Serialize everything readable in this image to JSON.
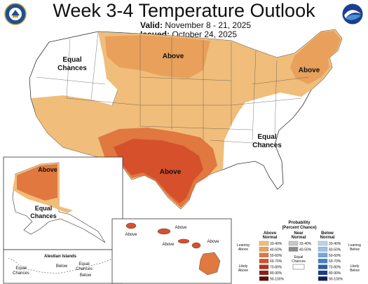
{
  "header": {
    "title": "Week 3-4 Temperature Outlook",
    "valid_label": "Valid:",
    "valid_value": "November 8 - 21, 2025",
    "issued_label": "Issued:",
    "issued_value": "October 24, 2025",
    "left_logo": "doc-seal-icon",
    "right_logo": "noaa-logo-icon"
  },
  "map": {
    "conus_labels": {
      "equal_west": [
        "Equal",
        "Chances"
      ],
      "above_north": "Above",
      "above_northeast": "Above",
      "above_south": "Above",
      "equal_southeast": [
        "Equal",
        "Chances"
      ]
    },
    "alaska_labels": {
      "above": "Above",
      "equal": [
        "Equal",
        "Chances"
      ]
    },
    "hawaii_labels": [
      "Above",
      "Above",
      "Above",
      "Above"
    ],
    "aleutian_labels": {
      "title": "Aleutian Islands",
      "equal": [
        "Equal",
        "Chances"
      ],
      "equal2": [
        "Equal",
        "Chances"
      ],
      "below": "Below",
      "below2": "Below"
    }
  },
  "legend": {
    "title": "Probability",
    "subtitle": "(Percent Chance)",
    "above_header": [
      "Above",
      "Normal"
    ],
    "near_header": [
      "Near",
      "Normal"
    ],
    "below_header": [
      "Below",
      "Normal"
    ],
    "leaning_above": [
      "Leaning",
      "Above"
    ],
    "likely_above": [
      "Likely",
      "Above"
    ],
    "leaning_below": [
      "Leaning",
      "Below"
    ],
    "likely_below": [
      "Likely",
      "Below"
    ],
    "equal_chances": [
      "Equal",
      "Chances"
    ],
    "above_bins": [
      {
        "range": "33-40%",
        "color": "#f0bd7a"
      },
      {
        "range": "40-50%",
        "color": "#e8a05a"
      },
      {
        "range": "50-60%",
        "color": "#e07840"
      },
      {
        "range": "60-70%",
        "color": "#d6502c"
      },
      {
        "range": "70-80%",
        "color": "#b8321c"
      },
      {
        "range": "80-90%",
        "color": "#8e1e12"
      },
      {
        "range": "90-100%",
        "color": "#5e0f08"
      }
    ],
    "near_bins": [
      {
        "range": "33-40%",
        "color": "#c8c8c8"
      },
      {
        "range": "40-50%",
        "color": "#8c8c8c"
      }
    ],
    "below_bins": [
      {
        "range": "33-40%",
        "color": "#bcd4ec"
      },
      {
        "range": "40-50%",
        "color": "#9cc0e6"
      },
      {
        "range": "50-60%",
        "color": "#74a8dc"
      },
      {
        "range": "60-70%",
        "color": "#3f84c8"
      },
      {
        "range": "70-80%",
        "color": "#2a5ea8"
      },
      {
        "range": "80-90%",
        "color": "#1c3c86"
      },
      {
        "range": "90-100%",
        "color": "#101e5c"
      }
    ]
  }
}
